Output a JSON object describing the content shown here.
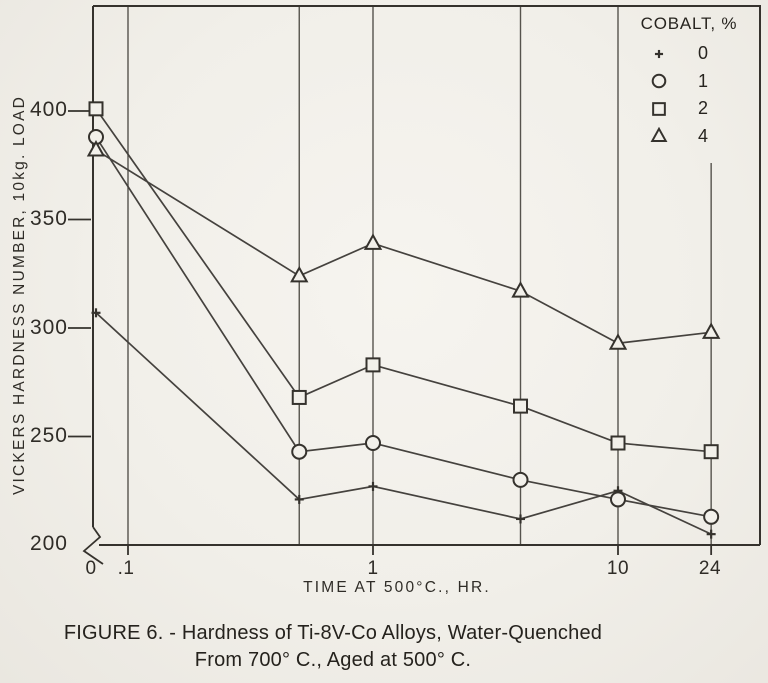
{
  "figure": {
    "caption_line1": "FIGURE 6. - Hardness of Ti-8V-Co Alloys, Water-Quenched",
    "caption_line2": "From 700° C., Aged at 500° C."
  },
  "chart_data": {
    "type": "line",
    "x": [
      0,
      0.5,
      1,
      4,
      10,
      24
    ],
    "series": [
      {
        "name": "0 % cobalt",
        "marker": "plus",
        "values": [
          307,
          221,
          227,
          212,
          225,
          205
        ]
      },
      {
        "name": "1 % cobalt",
        "marker": "circle",
        "values": [
          388,
          243,
          247,
          230,
          221,
          213
        ]
      },
      {
        "name": "2 % cobalt",
        "marker": "square",
        "values": [
          401,
          268,
          283,
          264,
          247,
          243
        ]
      },
      {
        "name": "4 % cobalt",
        "marker": "triangle",
        "values": [
          382,
          324,
          339,
          317,
          293,
          298
        ]
      }
    ],
    "xlabel": "TIME AT 500°C., HR.",
    "ylabel": "VICKERS HARDNESS NUMBER, 10kg. LOAD",
    "x_scale": "log, with broken axis between 0 and .1",
    "x_tick_labels": [
      "0",
      ".1",
      "1",
      "10",
      "24"
    ],
    "x_tick_values": [
      0,
      0.1,
      1,
      10,
      24
    ],
    "x_gridlines": [
      0.1,
      0.5,
      1,
      4,
      10,
      24
    ],
    "y_ticks": [
      400,
      350,
      300,
      250,
      200
    ],
    "ylim": [
      200,
      415
    ],
    "grid": "vertical gridlines only",
    "legend": {
      "title": "COBALT, %",
      "position": "top-right inside plot area",
      "entries": [
        {
          "marker": "plus",
          "label": "0"
        },
        {
          "marker": "circle",
          "label": "1"
        },
        {
          "marker": "square",
          "label": "2"
        },
        {
          "marker": "triangle",
          "label": "4"
        }
      ]
    },
    "colors": {
      "paper": "#f2f0ea",
      "ink": "#35322d",
      "line": "#45423e",
      "grid": "#56534d"
    }
  }
}
